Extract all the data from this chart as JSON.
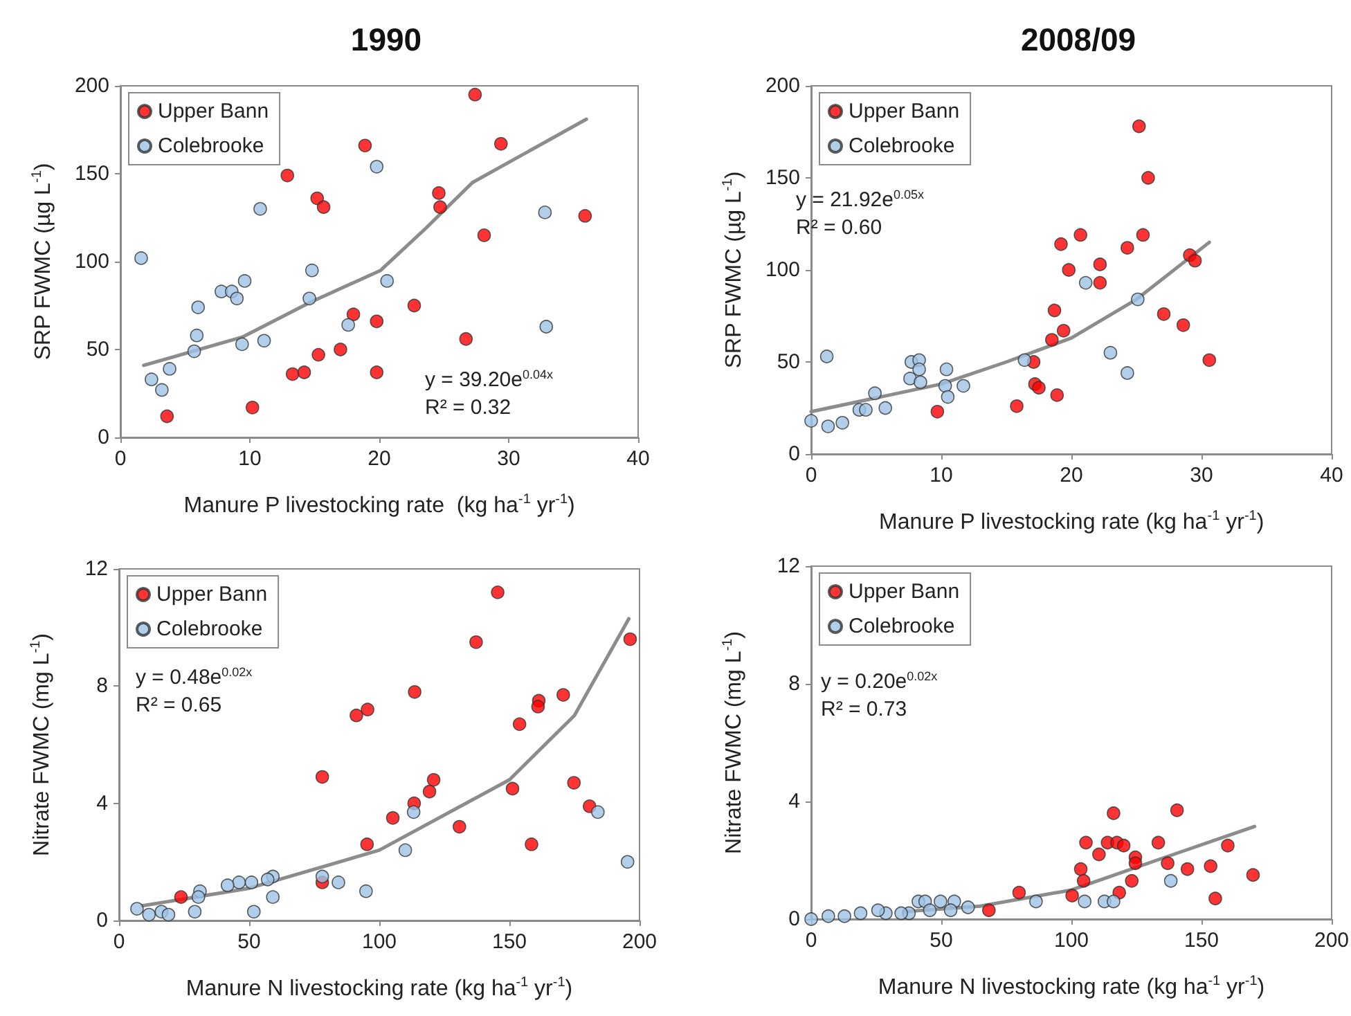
{
  "chart_data": [
    {
      "type": "scatter",
      "title": "1990",
      "xlabel": "Manure P livestocking rate  (kg ha$^{-1}$ yr$^{-1}$)",
      "ylabel": "SRP FWMC (µg L$^{-1}$)",
      "xlim": [
        0,
        40
      ],
      "xticks": [
        0,
        10,
        20,
        30,
        40
      ],
      "ylim": [
        0,
        200
      ],
      "yticks": [
        0,
        50,
        100,
        150,
        200
      ],
      "grid": false,
      "legend": "top left",
      "marker": "circle",
      "annotations": [
        "y = 39.20e$^{0.04x}$",
        "R² = 0.32"
      ],
      "series": [
        {
          "name": "Upper Bann",
          "color": "#ff0000",
          "x": [
            27.4,
            18.9,
            29.4,
            12.9,
            15.2,
            15.7,
            24.6,
            24.7,
            35.9,
            28.1,
            22.7,
            18.0,
            19.8,
            26.7,
            15.3,
            17.0,
            13.3,
            14.2,
            19.8,
            10.2,
            3.6
          ],
          "values": [
            195,
            166,
            167,
            149,
            136,
            131,
            139,
            131,
            126,
            115,
            75,
            70,
            66,
            56,
            47,
            50,
            36,
            37,
            37,
            17,
            12
          ]
        },
        {
          "name": "Colebrooke",
          "color": "#9dc3e6",
          "x": [
            1.6,
            10.8,
            19.8,
            32.8,
            14.8,
            20.6,
            9.6,
            7.8,
            8.6,
            9.0,
            14.6,
            6.0,
            5.9,
            5.7,
            9.4,
            11.1,
            17.6,
            32.9,
            3.8,
            2.4,
            3.2
          ],
          "values": [
            102,
            130,
            154,
            128,
            95,
            89,
            89,
            83,
            83,
            79,
            79,
            74,
            58,
            49,
            53,
            55,
            64,
            63,
            39,
            33,
            27
          ]
        },
        {
          "type": "line",
          "color": "#8c8c8c",
          "marker": "none",
          "x": [
            1.8,
            9.4,
            14.7,
            20.1,
            23.6,
            27.2,
            36
          ],
          "values": [
            41,
            57,
            77,
            95,
            119,
            145,
            181
          ]
        }
      ]
    },
    {
      "type": "scatter",
      "title": "2008/09",
      "xlabel": "Manure P livestocking rate (kg ha$^{-1}$ yr$^{-1}$)",
      "ylabel": "SRP FWMC (µg L$^{-1}$)",
      "xlim": [
        0,
        40
      ],
      "xticks": [
        0,
        10,
        20,
        30,
        40
      ],
      "ylim": [
        0,
        200
      ],
      "yticks": [
        0,
        50,
        100,
        150,
        200
      ],
      "grid": false,
      "legend": "top left",
      "marker": "circle",
      "annotations": [
        "y = 21.92e$^{0.05x}$",
        "R² = 0.60"
      ],
      "series": [
        {
          "name": "Upper Bann",
          "color": "#ff0000",
          "x": [
            25.2,
            25.9,
            20.7,
            25.5,
            19.2,
            24.3,
            29.1,
            29.5,
            22.2,
            19.8,
            22.2,
            18.7,
            27.1,
            28.6,
            19.4,
            18.5,
            30.6,
            17.1,
            17.2,
            17.5,
            18.9,
            15.8,
            9.7
          ],
          "values": [
            178,
            150,
            119,
            119,
            114,
            112,
            108,
            105,
            103,
            100,
            93,
            78,
            76,
            70,
            67,
            62,
            51,
            50,
            38,
            36,
            32,
            26,
            23
          ]
        },
        {
          "name": "Colebrooke",
          "color": "#9dc3e6",
          "x": [
            21.1,
            25.1,
            23.0,
            24.3,
            16.4,
            1.2,
            7.7,
            8.3,
            8.3,
            7.6,
            8.4,
            10.4,
            10.3,
            10.5,
            11.7,
            4.9,
            5.7,
            3.7,
            4.2,
            0,
            1.3,
            2.4
          ],
          "values": [
            93,
            84,
            55,
            44,
            51,
            53,
            50,
            51,
            46,
            41,
            39,
            46,
            37,
            31,
            37,
            33,
            25,
            24,
            24,
            18,
            15,
            17
          ]
        },
        {
          "type": "line",
          "color": "#8c8c8c",
          "marker": "none",
          "x": [
            0,
            10,
            15,
            20,
            25,
            30.6
          ],
          "values": [
            23,
            38,
            50,
            63,
            84,
            115
          ]
        }
      ]
    },
    {
      "type": "scatter",
      "xlabel": "Manure N livestocking rate (kg ha$^{-1}$ yr$^{-1}$)",
      "ylabel": "Nitrate FWMC (mg L$^{-1}$)",
      "xlim": [
        0,
        200
      ],
      "xticks": [
        0,
        50,
        100,
        150,
        200
      ],
      "ylim": [
        0,
        12
      ],
      "yticks": [
        0,
        4,
        8,
        12
      ],
      "grid": false,
      "legend": "top left",
      "marker": "circle",
      "annotations": [
        "y = 0.48e$^{0.02x}$",
        "R² = 0.65"
      ],
      "series": [
        {
          "name": "Upper Bann",
          "color": "#ff0000",
          "x": [
            145.5,
            137.2,
            196.4,
            113.6,
            170.7,
            161.3,
            161.0,
            95.5,
            91.2,
            153.9,
            78.1,
            120.9,
            151.2,
            174.8,
            119.3,
            113.4,
            105.2,
            180.8,
            130.8,
            158.5,
            95.3,
            78.1,
            23.8
          ],
          "values": [
            11.2,
            9.5,
            9.6,
            7.8,
            7.7,
            7.5,
            7.3,
            7.2,
            7.0,
            6.7,
            4.9,
            4.8,
            4.5,
            4.7,
            4.4,
            4.0,
            3.5,
            3.9,
            3.2,
            2.6,
            2.6,
            1.3,
            0.8
          ]
        },
        {
          "name": "Colebrooke",
          "color": "#9dc3e6",
          "x": [
            113.2,
            184.0,
            110.0,
            195.4,
            94.9,
            84.3,
            78.1,
            59.1,
            57.1,
            59.1,
            50.9,
            46.1,
            41.7,
            31.1,
            30.5,
            51.8,
            29.1,
            6.9,
            11.5,
            16.3,
            19.0
          ],
          "values": [
            3.7,
            3.7,
            2.4,
            2.0,
            1.0,
            1.3,
            1.5,
            1.5,
            1.4,
            0.8,
            1.3,
            1.3,
            1.2,
            1.0,
            0.8,
            0.3,
            0.3,
            0.4,
            0.2,
            0.3,
            0.2
          ]
        },
        {
          "type": "line",
          "color": "#8c8c8c",
          "marker": "none",
          "x": [
            8.9,
            50,
            100,
            150,
            175,
            195.9
          ],
          "values": [
            0.5,
            1.1,
            2.4,
            4.8,
            7.0,
            10.3
          ]
        }
      ]
    },
    {
      "type": "scatter",
      "xlabel": "Manure N livestocking rate (kg ha$^{-1}$ yr$^{-1}$)",
      "ylabel": "Nitrate FWMC (mg L$^{-1}$)",
      "xlim": [
        0,
        200
      ],
      "xticks": [
        0,
        50,
        100,
        150,
        200
      ],
      "ylim": [
        0,
        12
      ],
      "yticks": [
        0,
        4,
        8,
        12
      ],
      "grid": false,
      "legend": "top left",
      "marker": "circle",
      "annotations": [
        "y = 0.20e$^{0.02x}$",
        "R² = 0.73"
      ],
      "series": [
        {
          "name": "Upper Bann",
          "color": "#ff0000",
          "x": [
            140.6,
            116.2,
            105.6,
            113.9,
            117.5,
            120.1,
            133.4,
            160.1,
            110.6,
            124.6,
            124.6,
            137.0,
            103.6,
            144.6,
            153.5,
            169.8,
            104.7,
            123.2,
            118.4,
            155.3,
            100.3,
            79.9,
            68.3
          ],
          "values": [
            3.7,
            3.6,
            2.6,
            2.6,
            2.6,
            2.5,
            2.6,
            2.5,
            2.2,
            2.1,
            1.9,
            1.9,
            1.7,
            1.7,
            1.8,
            1.5,
            1.3,
            1.3,
            0.9,
            0.7,
            0.8,
            0.9,
            0.3
          ]
        },
        {
          "name": "Colebrooke",
          "color": "#9dc3e6",
          "x": [
            138.2,
            105.1,
            112.7,
            116.2,
            86.4,
            41.2,
            43.8,
            49.7,
            55.0,
            45.6,
            53.6,
            60.3,
            37.6,
            34.6,
            28.7,
            25.7,
            19.0,
            12.8,
            6.6,
            0
          ],
          "values": [
            1.3,
            0.6,
            0.6,
            0.6,
            0.6,
            0.6,
            0.6,
            0.6,
            0.6,
            0.3,
            0.3,
            0.4,
            0.2,
            0.2,
            0.2,
            0.3,
            0.2,
            0.1,
            0.1,
            0.0
          ]
        },
        {
          "type": "line",
          "color": "#8c8c8c",
          "marker": "none",
          "x": [
            35.5,
            65,
            100,
            136,
            170.4
          ],
          "values": [
            0.25,
            0.44,
            0.99,
            2.1,
            3.15
          ]
        }
      ]
    }
  ]
}
